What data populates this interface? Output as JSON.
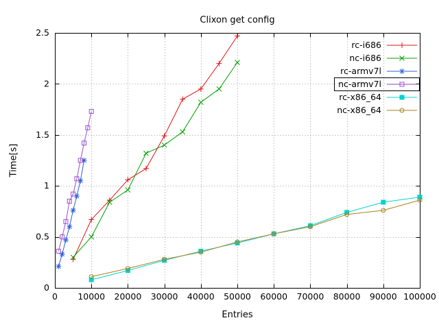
{
  "chart_data": {
    "type": "line",
    "title": "Clixon get config",
    "xlabel": "Entries",
    "ylabel": "Time[s]",
    "xlim": [
      0,
      100000
    ],
    "ylim": [
      0,
      2.5
    ],
    "x_ticks": [
      0,
      10000,
      20000,
      30000,
      40000,
      50000,
      60000,
      70000,
      80000,
      90000,
      100000
    ],
    "y_ticks": [
      0,
      0.5,
      1,
      1.5,
      2,
      2.5
    ],
    "grid": true,
    "legend_position": "top-right-inside",
    "legend_boxed_entry": "nc-armv7l",
    "series": [
      {
        "name": "rc-i686",
        "color": "#e01010",
        "marker": "plus",
        "x": [
          5000,
          10000,
          15000,
          20000,
          25000,
          30000,
          35000,
          40000,
          45000,
          50000
        ],
        "y": [
          0.28,
          0.67,
          0.86,
          1.06,
          1.17,
          1.49,
          1.85,
          1.95,
          2.2,
          2.47
        ]
      },
      {
        "name": "nc-i686",
        "color": "#00a000",
        "marker": "cross",
        "x": [
          5000,
          10000,
          15000,
          20000,
          25000,
          30000,
          35000,
          40000,
          45000,
          50000
        ],
        "y": [
          0.3,
          0.5,
          0.84,
          0.96,
          1.32,
          1.4,
          1.53,
          1.82,
          1.95,
          2.21
        ]
      },
      {
        "name": "rc-armv7l",
        "color": "#2b5fd9",
        "marker": "asterisk",
        "x": [
          1000,
          2000,
          3000,
          4000,
          5000,
          6000,
          7000,
          8000
        ],
        "y": [
          0.21,
          0.33,
          0.47,
          0.6,
          0.76,
          0.9,
          1.05,
          1.25
        ]
      },
      {
        "name": "nc-armv7l",
        "color": "#9a4fd0",
        "marker": "square-open",
        "x": [
          1000,
          2000,
          3000,
          4000,
          5000,
          6000,
          7000,
          8000,
          9000,
          10000
        ],
        "y": [
          0.36,
          0.5,
          0.65,
          0.85,
          0.92,
          1.07,
          1.25,
          1.42,
          1.57,
          1.73
        ]
      },
      {
        "name": "rc-x86_64",
        "color": "#00d2d2",
        "marker": "square-filled",
        "x": [
          10000,
          20000,
          30000,
          40000,
          50000,
          60000,
          70000,
          80000,
          90000,
          100000
        ],
        "y": [
          0.08,
          0.17,
          0.27,
          0.36,
          0.44,
          0.53,
          0.61,
          0.74,
          0.84,
          0.89
        ]
      },
      {
        "name": "nc-x86_64",
        "color": "#a8821e",
        "marker": "circle-open",
        "x": [
          10000,
          20000,
          30000,
          40000,
          50000,
          60000,
          70000,
          80000,
          90000,
          100000
        ],
        "y": [
          0.11,
          0.19,
          0.28,
          0.35,
          0.45,
          0.53,
          0.6,
          0.72,
          0.76,
          0.86
        ]
      }
    ]
  }
}
